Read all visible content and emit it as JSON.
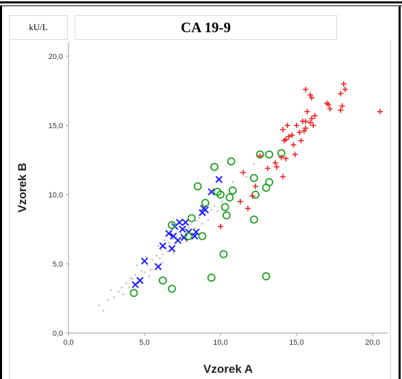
{
  "header": {
    "unit": "kU/L",
    "title": "CA 19-9"
  },
  "colors": {
    "gray": "#c4c4c4",
    "blue": "#1a1aff",
    "green": "#1e9e1e",
    "red": "#ee2222"
  },
  "chart_data": {
    "type": "scatter",
    "title": "CA 19-9",
    "xlabel": "Vzorek A",
    "ylabel": "Vzorek B",
    "xlim": [
      0,
      21
    ],
    "ylim": [
      0,
      21
    ],
    "xticks": [
      "0,0",
      "5,0",
      "10,0",
      "15,0",
      "20,0"
    ],
    "yticks": [
      "0,0",
      "5,0",
      "10,0",
      "15,0",
      "20,0"
    ],
    "tick_values": [
      0,
      5,
      10,
      15,
      20
    ],
    "series": [
      {
        "marker": "dot",
        "color": "#c4c4c4",
        "points": [
          [
            2.0,
            2.0
          ],
          [
            2.3,
            1.6
          ],
          [
            2.6,
            2.4
          ],
          [
            3.0,
            2.6
          ],
          [
            3.3,
            3.0
          ],
          [
            3.6,
            2.8
          ],
          [
            3.8,
            3.6
          ],
          [
            4.0,
            3.3
          ],
          [
            4.2,
            3.9
          ],
          [
            4.4,
            4.2
          ],
          [
            4.6,
            3.6
          ],
          [
            4.8,
            4.5
          ],
          [
            5.0,
            4.4
          ],
          [
            5.2,
            4.9
          ],
          [
            5.4,
            4.6
          ],
          [
            5.5,
            5.3
          ],
          [
            5.7,
            5.0
          ],
          [
            5.8,
            5.6
          ],
          [
            6.0,
            5.4
          ],
          [
            6.1,
            6.0
          ],
          [
            6.2,
            5.7
          ],
          [
            6.4,
            6.2
          ],
          [
            6.5,
            5.9
          ],
          [
            6.6,
            6.5
          ],
          [
            6.8,
            6.2
          ],
          [
            6.9,
            6.8
          ],
          [
            7.0,
            6.4
          ],
          [
            7.1,
            7.0
          ],
          [
            7.2,
            6.7
          ],
          [
            7.4,
            7.2
          ],
          [
            7.5,
            6.9
          ],
          [
            7.6,
            7.5
          ],
          [
            7.7,
            7.1
          ],
          [
            7.9,
            7.6
          ],
          [
            8.0,
            7.3
          ],
          [
            8.1,
            7.9
          ],
          [
            8.3,
            7.6
          ],
          [
            8.4,
            8.1
          ],
          [
            8.6,
            8.3
          ],
          [
            8.8,
            7.9
          ],
          [
            9.0,
            8.6
          ],
          [
            9.2,
            8.2
          ],
          [
            9.4,
            8.9
          ],
          [
            9.6,
            9.2
          ],
          [
            9.8,
            8.8
          ],
          [
            10.1,
            9.5
          ],
          [
            10.4,
            9.8
          ],
          [
            4.5,
            4.9
          ],
          [
            5.1,
            5.5
          ],
          [
            5.9,
            6.3
          ],
          [
            6.3,
            6.7
          ],
          [
            6.7,
            7.1
          ],
          [
            7.3,
            7.7
          ],
          [
            5.3,
            4.1
          ],
          [
            6.2,
            5.1
          ],
          [
            6.9,
            5.8
          ],
          [
            7.8,
            6.6
          ],
          [
            3.5,
            3.3
          ],
          [
            4.1,
            4.0
          ],
          [
            2.8,
            3.1
          ],
          [
            12.2,
            12.2
          ],
          [
            11.7,
            11.3
          ],
          [
            10.8,
            10.9
          ],
          [
            11.3,
            11.6
          ]
        ]
      },
      {
        "marker": "x",
        "color": "#1a1aff",
        "points": [
          [
            4.4,
            3.5
          ],
          [
            4.7,
            3.8
          ],
          [
            5.0,
            5.2
          ],
          [
            5.9,
            4.8
          ],
          [
            6.2,
            6.3
          ],
          [
            6.8,
            6.1
          ],
          [
            6.9,
            7.0
          ],
          [
            7.0,
            7.7
          ],
          [
            7.2,
            6.7
          ],
          [
            7.3,
            8.0
          ],
          [
            7.5,
            7.5
          ],
          [
            7.6,
            6.9
          ],
          [
            7.7,
            8.0
          ],
          [
            7.9,
            7.3
          ],
          [
            8.3,
            7.0
          ],
          [
            8.4,
            7.3
          ],
          [
            8.8,
            8.7
          ],
          [
            8.9,
            9.0
          ],
          [
            9.0,
            8.9
          ],
          [
            9.4,
            10.2
          ],
          [
            9.9,
            11.1
          ],
          [
            6.6,
            7.2
          ]
        ]
      },
      {
        "marker": "circle",
        "color": "#1e9e1e",
        "points": [
          [
            4.3,
            2.9
          ],
          [
            6.2,
            3.8
          ],
          [
            6.8,
            3.2
          ],
          [
            6.8,
            7.8
          ],
          [
            7.9,
            7.0
          ],
          [
            8.1,
            8.3
          ],
          [
            8.5,
            10.6
          ],
          [
            8.8,
            7.0
          ],
          [
            9.0,
            9.4
          ],
          [
            9.4,
            4.0
          ],
          [
            9.6,
            12.0
          ],
          [
            9.8,
            10.2
          ],
          [
            10.0,
            10.0
          ],
          [
            10.2,
            5.7
          ],
          [
            10.3,
            9.1
          ],
          [
            10.4,
            8.5
          ],
          [
            10.6,
            9.8
          ],
          [
            10.8,
            10.3
          ],
          [
            10.7,
            12.4
          ],
          [
            12.2,
            11.2
          ],
          [
            12.2,
            8.2
          ],
          [
            12.3,
            10.0
          ],
          [
            12.6,
            12.9
          ],
          [
            13.0,
            10.5
          ],
          [
            13.0,
            4.1
          ],
          [
            13.2,
            12.9
          ],
          [
            13.2,
            10.9
          ],
          [
            14.0,
            13.0
          ]
        ]
      },
      {
        "marker": "plus",
        "color": "#ee2222",
        "points": [
          [
            10.0,
            7.7
          ],
          [
            11.3,
            9.5
          ],
          [
            11.5,
            11.6
          ],
          [
            11.8,
            9.0
          ],
          [
            12.1,
            9.9
          ],
          [
            12.3,
            10.6
          ],
          [
            12.6,
            12.8
          ],
          [
            13.1,
            11.9
          ],
          [
            13.6,
            12.3
          ],
          [
            13.7,
            12.0
          ],
          [
            14.0,
            12.7
          ],
          [
            14.1,
            11.3
          ],
          [
            14.2,
            13.9
          ],
          [
            14.3,
            12.6
          ],
          [
            14.5,
            14.2
          ],
          [
            14.4,
            15.0
          ],
          [
            14.7,
            14.3
          ],
          [
            14.9,
            12.9
          ],
          [
            15.0,
            15.0
          ],
          [
            15.2,
            14.5
          ],
          [
            15.5,
            14.6
          ],
          [
            15.4,
            15.3
          ],
          [
            15.6,
            14.8
          ],
          [
            15.6,
            15.3
          ],
          [
            15.9,
            15.2
          ],
          [
            16.0,
            15.5
          ],
          [
            16.1,
            15.0
          ],
          [
            16.2,
            15.7
          ],
          [
            15.7,
            16.0
          ],
          [
            16.0,
            17.0
          ],
          [
            15.6,
            17.6
          ],
          [
            15.9,
            17.2
          ],
          [
            17.0,
            16.6
          ],
          [
            17.1,
            16.5
          ],
          [
            17.2,
            16.2
          ],
          [
            17.9,
            17.3
          ],
          [
            17.9,
            16.1
          ],
          [
            18.0,
            16.4
          ],
          [
            18.1,
            18.0
          ],
          [
            18.2,
            17.6
          ],
          [
            20.5,
            16.0
          ],
          [
            14.3,
            14.0
          ],
          [
            14.8,
            13.6
          ],
          [
            15.3,
            13.9
          ],
          [
            14.1,
            14.7
          ]
        ]
      }
    ]
  }
}
